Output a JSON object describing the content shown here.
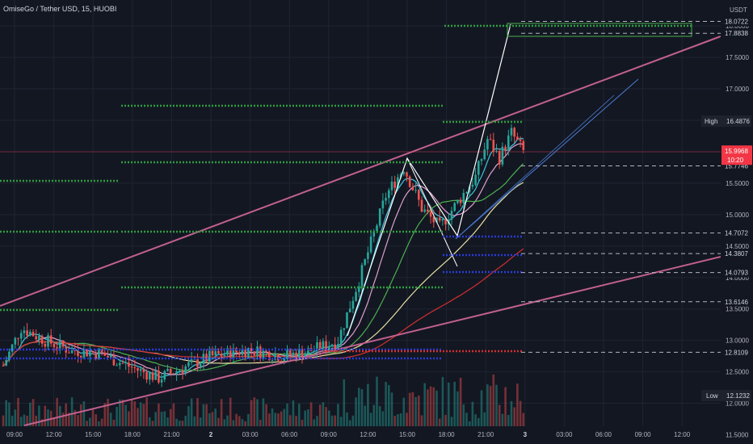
{
  "chart_data": {
    "type": "candlestick",
    "title": "OmiseGo / Tether USD, 15, HUOBI",
    "currency": "USDT",
    "ylim": [
      11.5,
      18.3
    ],
    "y_ticks": [
      "11.5000",
      "12.0000",
      "12.5000",
      "13.0000",
      "13.5000",
      "14.0000",
      "14.5000",
      "15.0000",
      "15.5000",
      "16.0000",
      "16.5000",
      "17.0000",
      "17.5000",
      "18.0000"
    ],
    "x_ticks": [
      "09:00",
      "12:00",
      "15:00",
      "18:00",
      "21:00",
      "2",
      "03:00",
      "06:00",
      "09:00",
      "12:00",
      "15:00",
      "18:00",
      "21:00",
      "3",
      "03:00",
      "06:00",
      "09:00",
      "12:00"
    ],
    "high": {
      "label": "High",
      "value": "16.4876"
    },
    "low": {
      "label": "Low",
      "value": "12.1232"
    },
    "last": {
      "value": "15.9968",
      "countdown": "10:20"
    },
    "price_levels": [
      {
        "text": "18.0722",
        "value": 18.0722
      },
      {
        "text": "17.8838",
        "value": 17.8838
      },
      {
        "text": "15.7746",
        "value": 15.7746
      },
      {
        "text": "14.7072",
        "value": 14.7072
      },
      {
        "text": "14.3807",
        "value": 14.3807
      },
      {
        "text": "14.0793",
        "value": 14.0793
      },
      {
        "text": "13.6146",
        "value": 13.6146
      },
      {
        "text": "12.8109",
        "value": 12.8109
      }
    ],
    "colors": {
      "up": "#26a69a",
      "down": "#ef5350",
      "channel": "#c2608f",
      "background": "#131722",
      "last": "#f23645"
    }
  }
}
